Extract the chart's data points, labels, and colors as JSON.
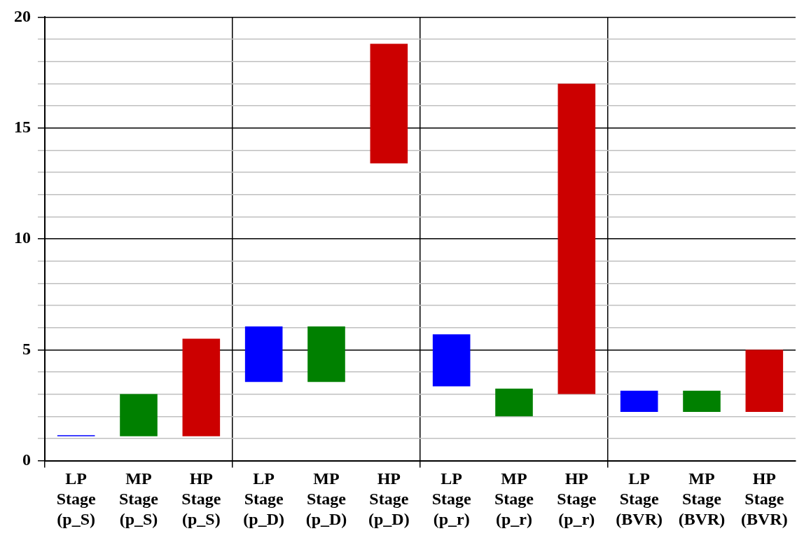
{
  "chart_data": {
    "type": "bar",
    "categories": [
      "LP Stage (p_S)",
      "MP Stage (p_S)",
      "HP Stage (p_S)",
      "LP Stage (p_D)",
      "MP Stage (p_D)",
      "HP Stage (p_D)",
      "LP Stage (p_r)",
      "MP Stage (p_r)",
      "HP Stage (p_r)",
      "LP Stage (BVR)",
      "MP Stage (BVR)",
      "HP Stage (BVR)"
    ],
    "base": [
      1.1,
      1.1,
      1.1,
      3.55,
      3.55,
      13.4,
      3.35,
      2.0,
      3.0,
      2.2,
      2.2,
      2.2
    ],
    "values": [
      0.05,
      1.9,
      4.4,
      2.5,
      2.5,
      5.4,
      2.35,
      1.25,
      14.0,
      0.95,
      0.95,
      2.8
    ],
    "colors": [
      "#0000ff",
      "#008000",
      "#cc0000",
      "#0000ff",
      "#008000",
      "#cc0000",
      "#0000ff",
      "#008000",
      "#cc0000",
      "#0000ff",
      "#008000",
      "#cc0000"
    ],
    "ylim": [
      0,
      20
    ],
    "yticks": [
      0,
      {
        "value": 1,
        "label": null
      },
      {
        "value": 2,
        "label": null
      },
      {
        "value": 3,
        "label": null
      },
      {
        "value": 4,
        "label": null
      },
      5,
      {
        "value": 6,
        "label": null
      },
      {
        "value": 7,
        "label": null
      },
      {
        "value": 8,
        "label": null
      },
      {
        "value": 9,
        "label": null
      },
      10,
      {
        "value": 11,
        "label": null
      },
      {
        "value": 12,
        "label": null
      },
      {
        "value": 13,
        "label": null
      },
      {
        "value": 14,
        "label": null
      },
      15,
      {
        "value": 16,
        "label": null
      },
      {
        "value": 17,
        "label": null
      },
      {
        "value": 18,
        "label": null
      },
      {
        "value": 19,
        "label": null
      },
      20
    ],
    "grid": true,
    "legend": false
  }
}
